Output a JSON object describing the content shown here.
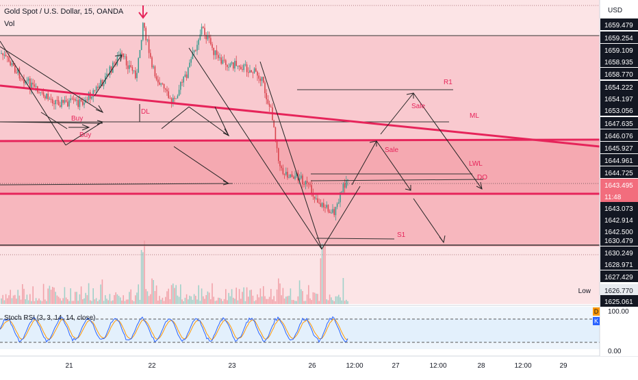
{
  "header": {
    "symbol": "Gold Spot / U.S. Dollar, 15, OANDA",
    "volume_label": "Vol",
    "currency": "USD"
  },
  "chart_data": {
    "type": "candlestick",
    "title": "Gold Spot / U.S. Dollar, 15, OANDA",
    "interval": "15",
    "source": "OANDA",
    "price_axis_labels": [
      "1659.479",
      "1659.254",
      "1659.109",
      "1658.935",
      "1658.770",
      "1654.222",
      "1654.197",
      "1653.056",
      "1647.635",
      "1646.076",
      "1645.927",
      "1644.961",
      "1644.725",
      "1643.495",
      "11:48",
      "1643.073",
      "1642.914",
      "1642.500",
      "1630.479",
      "1630.249",
      "1628.971",
      "1627.429",
      "1626.770",
      "1625.061"
    ],
    "current_price": "1643.495",
    "countdown": "11:48",
    "low_label": "Low",
    "low_value": "1626.770",
    "last_value": "1625.061",
    "x_tick_labels": [
      "21",
      "22",
      "23",
      "26",
      "12:00",
      "27",
      "12:00",
      "28",
      "12:00",
      "29"
    ],
    "annotations": [
      "DL",
      "Buy",
      "Buy",
      "Sale",
      "Sale",
      "R1",
      "ML",
      "LWL",
      "DO",
      "S1"
    ],
    "oscillator": {
      "name": "Stoch RSI (3, 3, 14, 14, close)",
      "levels": [
        "100.00",
        "0.00"
      ],
      "badges": [
        "D",
        "K"
      ]
    }
  },
  "colors": {
    "zone_light": "#fce4e6",
    "zone_medium": "#f8bcc2",
    "zone_strong": "#f5a3ab",
    "red_line": "#e6245a",
    "candle_up": "#3b9b8f",
    "candle_down": "#d9434d",
    "k_line": "#2962ff",
    "d_line": "#ff9800",
    "osc_band": "#e3f0fc",
    "axis_bg": "#ffffff",
    "price_tag": "#f26d7d",
    "label_bg": "#131722"
  }
}
